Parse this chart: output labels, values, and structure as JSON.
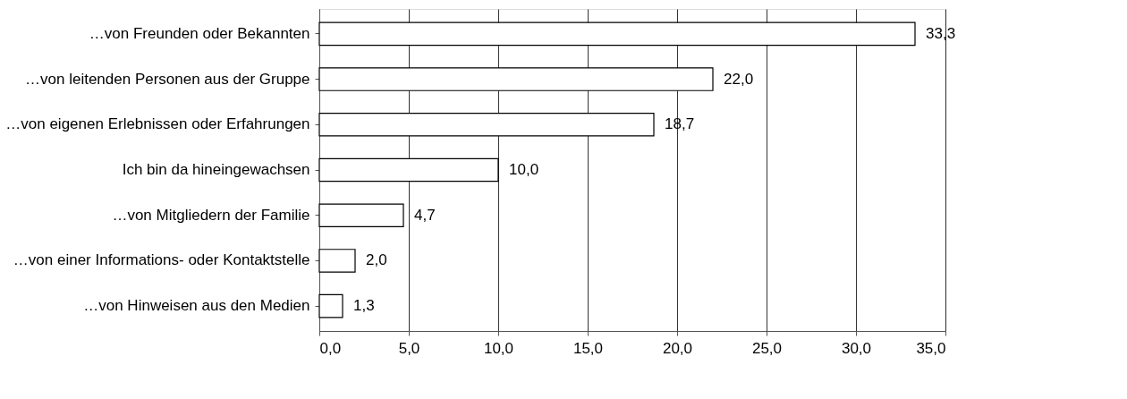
{
  "chart_data": {
    "type": "bar",
    "orientation": "horizontal",
    "categories": [
      "…von Freunden oder Bekannten",
      "…von leitenden Personen aus der Gruppe",
      "…von eigenen Erlebnissen oder Erfahrungen",
      "Ich bin da hineingewachsen",
      "…von Mitgliedern der Familie",
      "…von einer Informations- oder Kontaktstelle",
      "…von Hinweisen aus den Medien"
    ],
    "values": [
      33.3,
      22.0,
      18.7,
      10.0,
      4.7,
      2.0,
      1.3
    ],
    "value_labels": [
      "33,3",
      "22,0",
      "18,7",
      "10,0",
      "4,7",
      "2,0",
      "1,3"
    ],
    "color": "#ffffff",
    "xlim": [
      0,
      35
    ],
    "xticks": [
      {
        "value": 0,
        "label": "0,0"
      },
      {
        "value": 5,
        "label": "5,0"
      },
      {
        "value": 10,
        "label": "10,0"
      },
      {
        "value": 15,
        "label": "15,0"
      },
      {
        "value": 20,
        "label": "20,0"
      },
      {
        "value": 25,
        "label": "25,0"
      },
      {
        "value": 30,
        "label": "30,0"
      },
      {
        "value": 35,
        "label": "35,0"
      }
    ],
    "grid": "x"
  }
}
